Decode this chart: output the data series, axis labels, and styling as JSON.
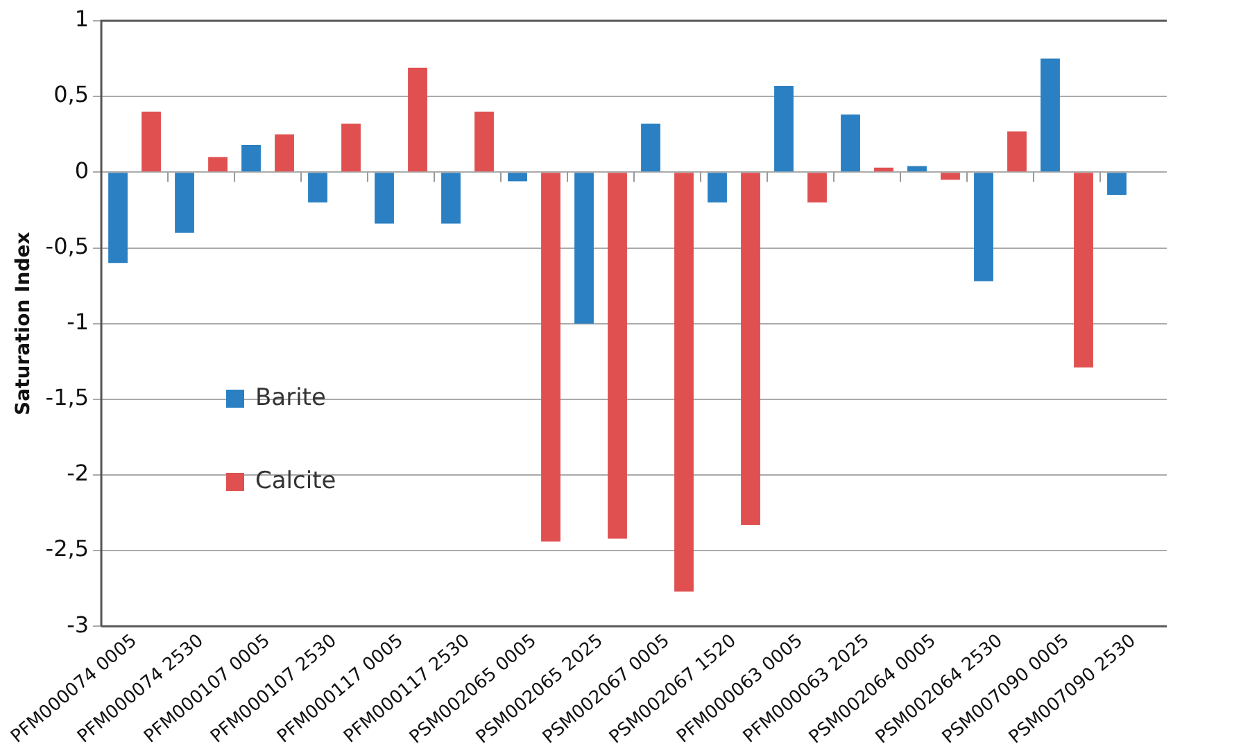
{
  "chart_data": {
    "type": "bar",
    "ylabel": "Saturation Index",
    "categories": [
      "PFM000074 0005",
      "PFM000074 2530",
      "PFM000107 0005",
      "PFM000107 2530",
      "PFM000117 0005",
      "PFM000117 2530",
      "PSM002065 0005",
      "PSM002065 2025",
      "PSM002067 0005",
      "PSM002067 1520",
      "PFM000063 0005",
      "PFM000063 2025",
      "PSM002064 0005",
      "PSM002064 2530",
      "PSM007090 0005",
      "PSM007090 2530"
    ],
    "series": [
      {
        "name": "Barite",
        "color": "#2a80c2",
        "values": [
          -0.6,
          -0.4,
          0.18,
          -0.2,
          -0.34,
          -0.34,
          -0.06,
          -1.0,
          0.32,
          -0.2,
          0.57,
          0.38,
          0.04,
          -0.72,
          0.75,
          -0.15
        ]
      },
      {
        "name": "Calcite",
        "color": "#e05050",
        "values": [
          0.4,
          0.1,
          0.25,
          0.32,
          0.69,
          0.4,
          -2.44,
          -2.42,
          -2.77,
          -2.33,
          -0.2,
          0.03,
          -0.05,
          0.27,
          -1.29,
          null
        ]
      }
    ],
    "ylim": [
      -3,
      1
    ],
    "yticks": [
      1,
      {
        "value": 0.5,
        "label": "0,5"
      },
      0,
      {
        "value": -0.5,
        "label": "-0,5"
      },
      -1,
      {
        "value": -1.5,
        "label": "-1,5"
      },
      -2,
      {
        "value": -2.5,
        "label": "-2,5"
      },
      -3
    ],
    "grid": "y",
    "legend": "left"
  }
}
